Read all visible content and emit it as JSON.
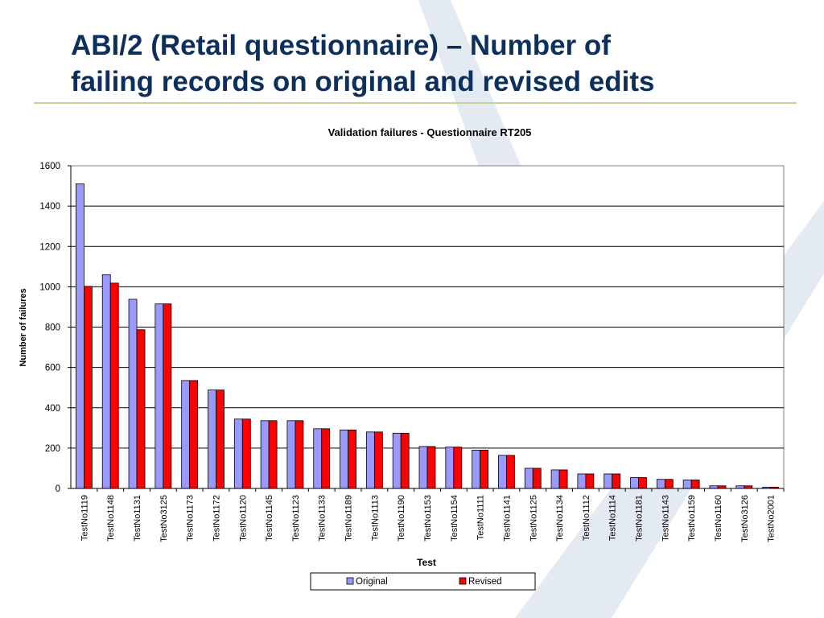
{
  "slide": {
    "title_line1": "ABI/2 (Retail questionnaire) – Number of",
    "title_line2": "failing records on original and revised edits"
  },
  "colors": {
    "title": "#0d2f5c",
    "rule": "#c6d29a",
    "original": "#9999ff",
    "revised": "#ff0000",
    "background_shape": "#dfe6ee"
  },
  "chart_data": {
    "type": "bar",
    "title": "Validation failures - Questionnaire RT205",
    "xlabel": "Test",
    "ylabel": "Number of failures",
    "ylim": [
      0,
      1600
    ],
    "yticks": [
      0,
      200,
      400,
      600,
      800,
      1000,
      1200,
      1400,
      1600
    ],
    "grid": true,
    "legend_position": "bottom",
    "categories": [
      "TestNo1119",
      "TestNo1148",
      "TestNo1131",
      "TestNo3125",
      "TestNo1173",
      "TestNo1172",
      "TestNo1120",
      "TestNo1145",
      "TestNo1123",
      "TestNo1133",
      "TestNo1189",
      "TestNo1113",
      "TestNo1190",
      "TestNo1153",
      "TestNo1154",
      "TestNo1111",
      "TestNo1141",
      "TestNo1125",
      "TestNo1134",
      "TestNo1112",
      "TestNo1114",
      "TestNo1181",
      "TestNo1143",
      "TestNo1159",
      "TestNo1160",
      "TestNo3126",
      "TestNo2001"
    ],
    "series": [
      {
        "name": "Original",
        "color": "#9999ff",
        "values": [
          1510,
          1060,
          938,
          915,
          535,
          488,
          344,
          336,
          336,
          296,
          290,
          280,
          274,
          208,
          205,
          190,
          164,
          100,
          92,
          72,
          72,
          54,
          45,
          42,
          13,
          13,
          6
        ]
      },
      {
        "name": "Revised",
        "color": "#ff0000",
        "values": [
          1002,
          1018,
          787,
          915,
          535,
          488,
          344,
          336,
          336,
          296,
          290,
          280,
          274,
          208,
          205,
          190,
          164,
          100,
          92,
          72,
          72,
          54,
          45,
          42,
          13,
          13,
          6
        ]
      }
    ]
  }
}
